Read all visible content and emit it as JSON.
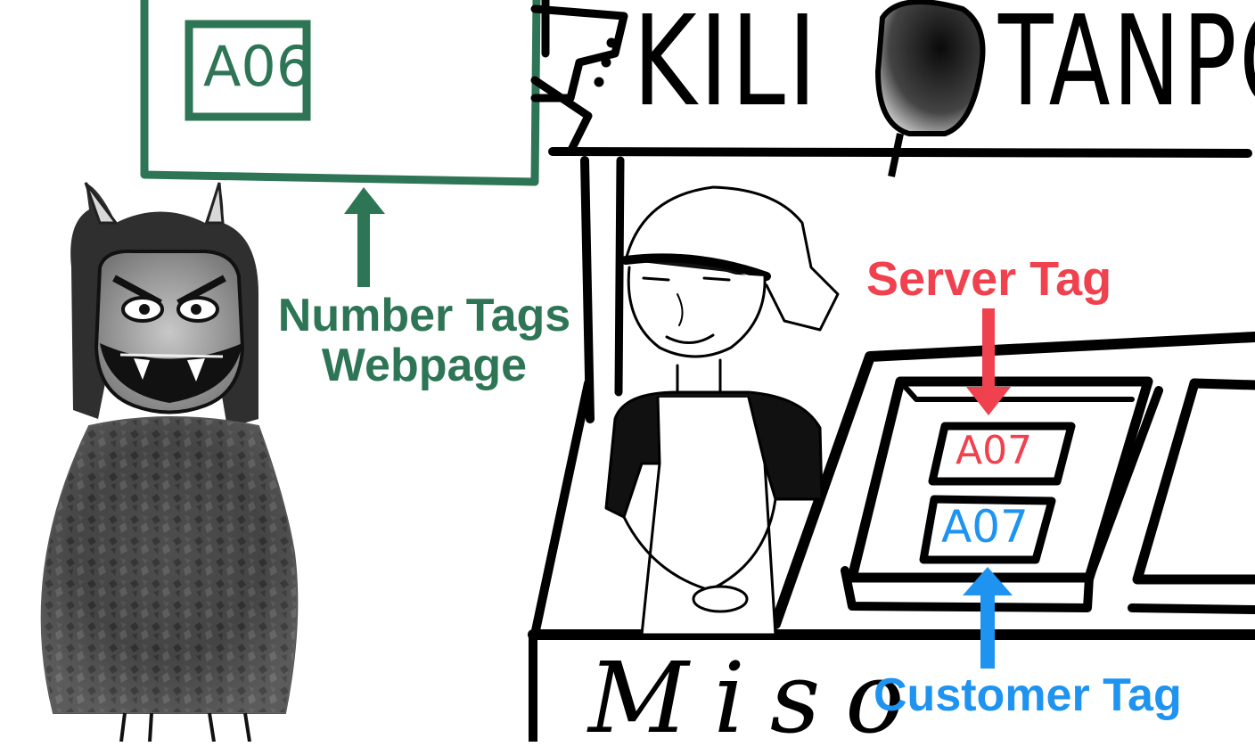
{
  "colors": {
    "webpage_green": "#2e7556",
    "server_red": "#f0414f",
    "customer_blue": "#1f93f0",
    "ink": "#000000"
  },
  "labels": {
    "webpage_line1": "Number Tags",
    "webpage_line2": "Webpage",
    "server_tag": "Server Tag",
    "customer_tag": "Customer Tag"
  },
  "tags": {
    "webpage_number": "A06",
    "server_number": "A07",
    "customer_number": "A07"
  },
  "sign": {
    "left_text": "KILI",
    "right_text": "TANPO"
  },
  "stall": {
    "front_text": "Miso"
  }
}
